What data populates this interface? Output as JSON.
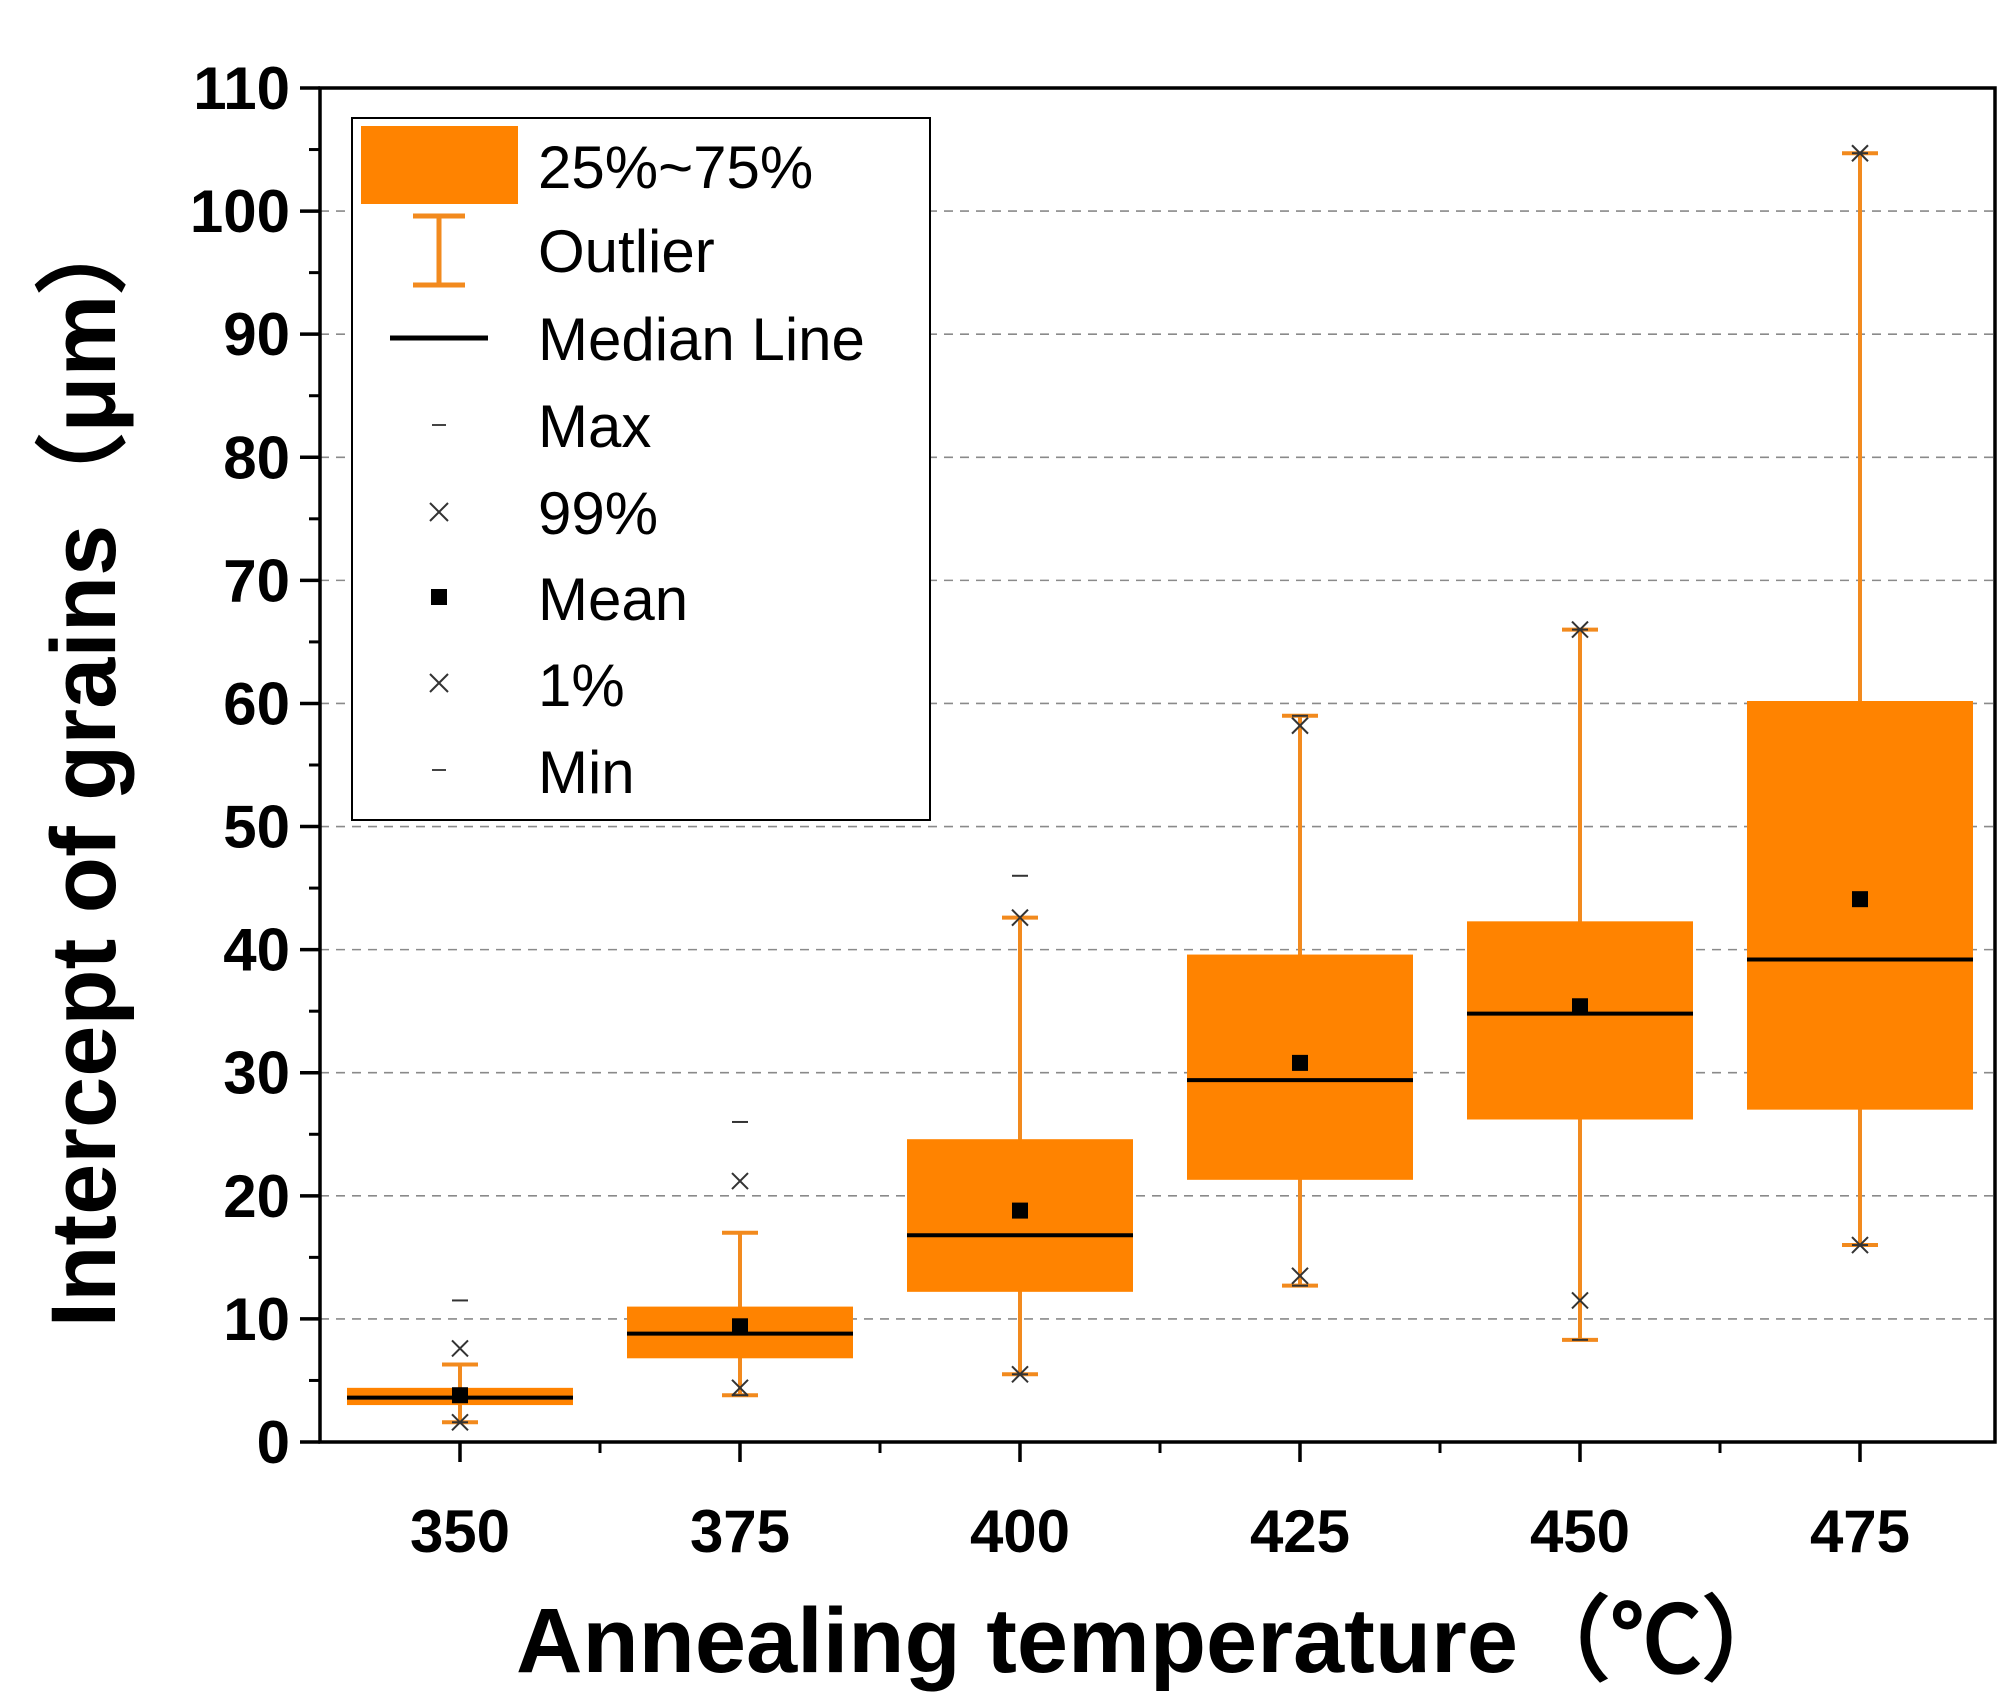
{
  "chart_data": {
    "type": "box",
    "xlabel": "Annealing temperature（℃）",
    "ylabel": "Intercept of grains（μm）",
    "ylim": [
      0,
      110
    ],
    "yticks": [
      0,
      10,
      20,
      30,
      40,
      50,
      60,
      70,
      80,
      90,
      100,
      110
    ],
    "grid": true,
    "legend_position": "top-left",
    "categories": [
      "350",
      "375",
      "400",
      "425",
      "450",
      "475"
    ],
    "series": [
      {
        "name": "350",
        "q1": 3.0,
        "median": 3.6,
        "q3": 4.4,
        "mean": 3.8,
        "whisker_low": 1.6,
        "whisker_high": 6.3,
        "p1": 1.6,
        "p99": 7.6,
        "min": 1.6,
        "max": 11.5
      },
      {
        "name": "375",
        "q1": 6.8,
        "median": 8.8,
        "q3": 11.0,
        "mean": 9.4,
        "whisker_low": 3.8,
        "whisker_high": 17.0,
        "p1": 4.4,
        "p99": 21.2,
        "min": 3.8,
        "max": 26.0
      },
      {
        "name": "400",
        "q1": 12.2,
        "median": 16.8,
        "q3": 24.6,
        "mean": 18.8,
        "whisker_low": 5.5,
        "whisker_high": 42.6,
        "p1": 5.5,
        "p99": 42.6,
        "min": 5.5,
        "max": 46.0
      },
      {
        "name": "425",
        "q1": 21.3,
        "median": 29.4,
        "q3": 39.6,
        "mean": 30.8,
        "whisker_low": 12.7,
        "whisker_high": 59.0,
        "p1": 13.5,
        "p99": 58.2,
        "min": 12.7,
        "max": 59.0
      },
      {
        "name": "450",
        "q1": 26.2,
        "median": 34.8,
        "q3": 42.3,
        "mean": 35.4,
        "whisker_low": 8.3,
        "whisker_high": 66.0,
        "p1": 11.5,
        "p99": 66.0,
        "min": 8.3,
        "max": 66.0
      },
      {
        "name": "475",
        "q1": 27.0,
        "median": 39.2,
        "q3": 60.2,
        "mean": 44.1,
        "whisker_low": 16.0,
        "whisker_high": 104.7,
        "p1": 16.0,
        "p99": 104.7,
        "min": 16.0,
        "max": 104.7
      }
    ],
    "legend": [
      "25%~75%",
      "Outlier",
      "Median Line",
      "Max",
      "99%",
      "Mean",
      "1%",
      "Min"
    ],
    "colors": {
      "box": "#ff8300",
      "whisker": "#f28a1e",
      "median": "#000000",
      "marker": "#000000",
      "frame": "#000000"
    }
  }
}
